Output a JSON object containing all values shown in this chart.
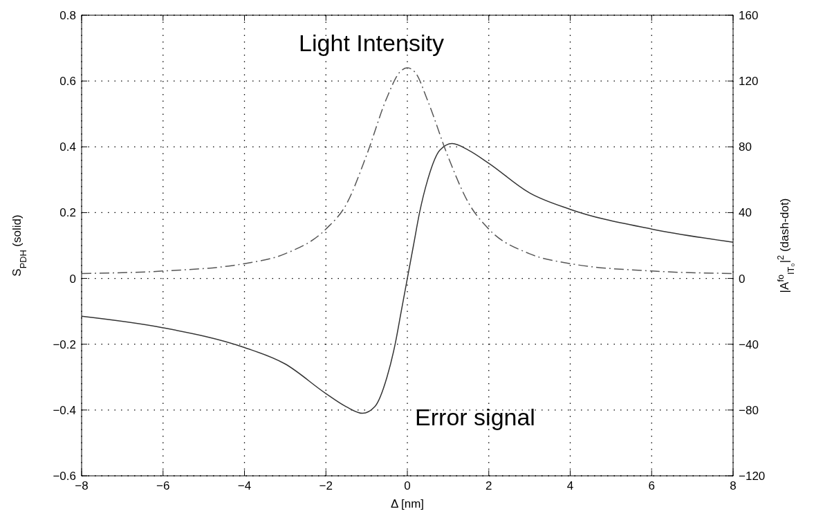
{
  "chart_data": {
    "type": "line",
    "xlabel": "Δ [nm]",
    "ylabel": "S$_{PDH}$ (solid)",
    "y2label": "|A$^{fo}$$_{IT₀}$|$^{2}$ (dash-dot)",
    "xlim": [
      -8,
      8
    ],
    "xticks": [
      -8,
      -6,
      -4,
      -2,
      0,
      2,
      4,
      6,
      8
    ],
    "ylim": [
      -0.6,
      0.8
    ],
    "yticks": [
      -0.6,
      -0.4,
      -0.2,
      0,
      0.2,
      0.4,
      0.6,
      0.8
    ],
    "y2lim": [
      -120,
      160
    ],
    "y2ticks": [
      -120,
      -80,
      -40,
      0,
      40,
      80,
      120,
      160
    ],
    "grid": true,
    "series": [
      {
        "color": "#333333",
        "line_style": "solid",
        "x": [
          -8,
          -6,
          -4,
          -3,
          -2,
          -1.5,
          -1.1,
          -0.8,
          -0.5,
          -0.3,
          -0.15,
          0,
          0.15,
          0.3,
          0.5,
          0.8,
          1.1,
          1.5,
          2,
          3,
          4,
          6,
          8
        ],
        "values": [
          -0.115,
          -0.15,
          -0.21,
          -0.26,
          -0.35,
          -0.39,
          -0.41,
          -0.39,
          -0.3,
          -0.2,
          -0.1,
          0,
          0.1,
          0.2,
          0.3,
          0.39,
          0.41,
          0.39,
          0.35,
          0.26,
          0.21,
          0.15,
          0.11
        ]
      },
      {
        "color": "#555555",
        "line_style": "dashed",
        "axis": "y2",
        "x": [
          -8,
          -6,
          -4,
          -3,
          -2,
          -1.5,
          -1,
          -0.5,
          -0.2,
          0,
          0.2,
          0.5,
          1,
          1.5,
          2,
          3,
          4,
          6,
          8
        ],
        "values": [
          3,
          4.5,
          9,
          15,
          30,
          45,
          75,
          110,
          125,
          128,
          125,
          108,
          74,
          46,
          30,
          15,
          9,
          4.5,
          3
        ]
      }
    ],
    "annotations": [
      "Light Intensity",
      "Error signal"
    ]
  }
}
